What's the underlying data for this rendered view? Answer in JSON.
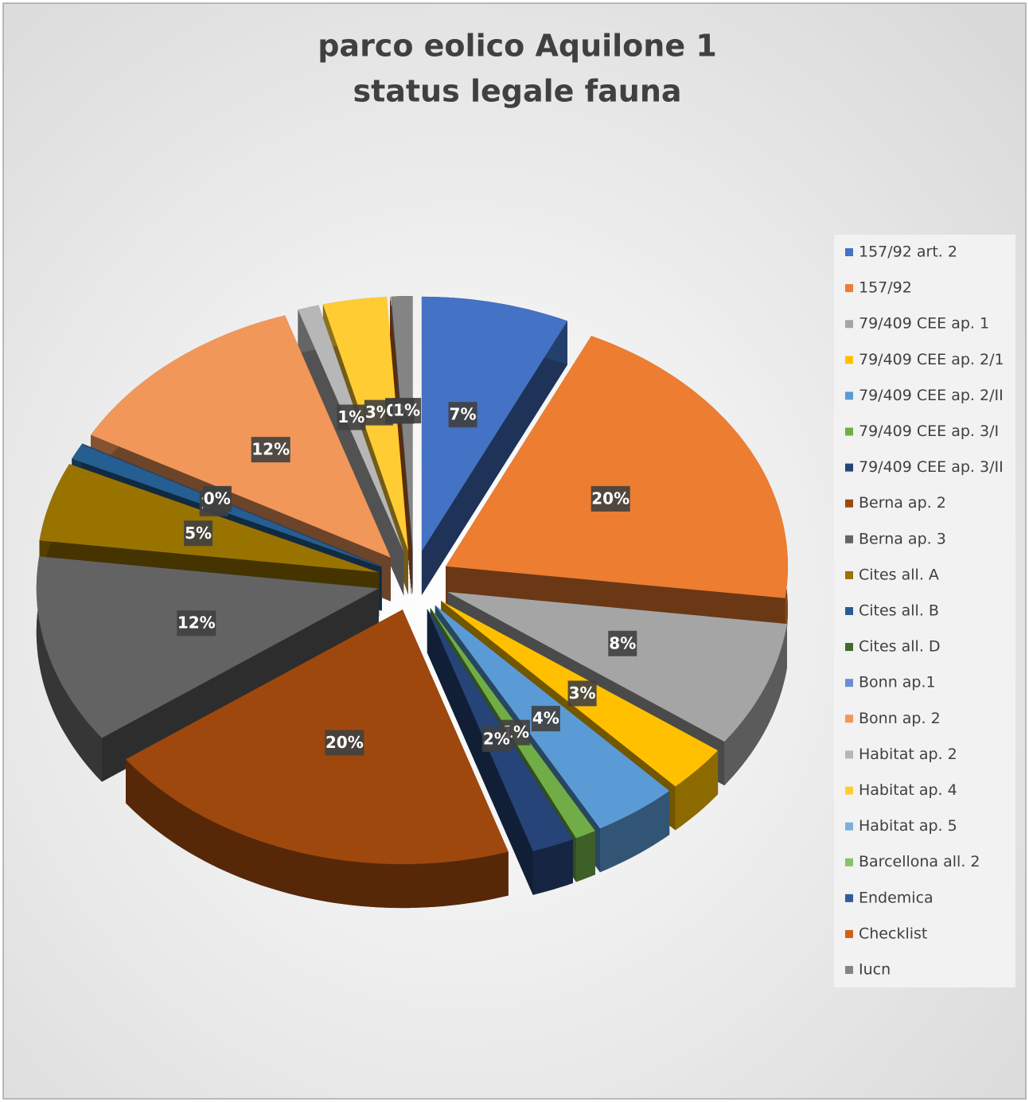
{
  "chart_data": {
    "type": "pie3d",
    "title": "parco eolico Aquilone 1",
    "subtitle": "status legale fauna",
    "categories": [
      "157/92 art. 2",
      "157/92",
      "79/409 CEE ap. 1",
      "79/409 CEE ap. 2/1",
      "79/409 CEE ap. 2/II",
      "79/409 CEE ap. 3/I",
      "79/409 CEE ap. 3/II",
      "Berna ap. 2",
      "Berna ap. 3",
      "Cites all. A",
      "Cites all. B",
      "Cites all. D",
      "Bonn ap.1",
      "Bonn ap. 2",
      "Habitat ap. 2",
      "Habitat ap. 4",
      "Habitat ap. 5",
      "Barcellona all. 2",
      "Endemica",
      "Checklist",
      "Iucn"
    ],
    "values": [
      7,
      20,
      8,
      3,
      4,
      1,
      2,
      20,
      12,
      5,
      1,
      0,
      0,
      12,
      1,
      3,
      0,
      0,
      0,
      0,
      1
    ],
    "value_labels": [
      "7%",
      "20%",
      "8%",
      "3%",
      "4%",
      "1%",
      "2%",
      "20%",
      "12%",
      "5%",
      "1%",
      "0%",
      "0%",
      "12%",
      "1%",
      "3%",
      "0%",
      "0%",
      "0%",
      "0%",
      "1%"
    ],
    "colors": [
      "#4472C4",
      "#ED7D31",
      "#A5A5A5",
      "#FFC000",
      "#5B9BD5",
      "#70AD47",
      "#264478",
      "#9E480E",
      "#636363",
      "#997300",
      "#255E91",
      "#43682B",
      "#698ED0",
      "#F1975A",
      "#B7B7B7",
      "#FFCD33",
      "#7CAFDD",
      "#8CC168",
      "#335AA1",
      "#D26012",
      "#848484"
    ],
    "legend": "right"
  }
}
